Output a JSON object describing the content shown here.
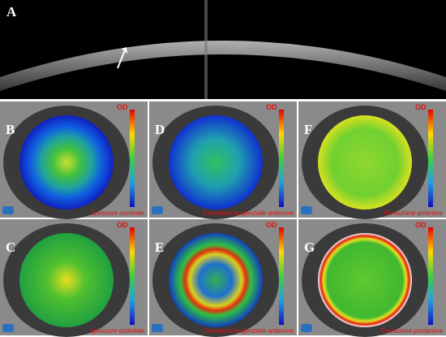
{
  "figure": {
    "oct": {
      "label": "A"
    },
    "maps": [
      {
        "label": "B",
        "caption": "Spessore corneale",
        "badge": "OD"
      },
      {
        "label": "D",
        "caption": "Curvatura tangenziale anteriore",
        "badge": "OD"
      },
      {
        "label": "F",
        "caption": "Elevazione anteriore",
        "badge": "OD"
      },
      {
        "label": "C",
        "caption": "Spessore epiteliale",
        "badge": "OD"
      },
      {
        "label": "E",
        "caption": "Curvatura tangenziale anteriore",
        "badge": "OD"
      },
      {
        "label": "G",
        "caption": "Elevazione posteriore",
        "badge": "OD"
      }
    ]
  }
}
